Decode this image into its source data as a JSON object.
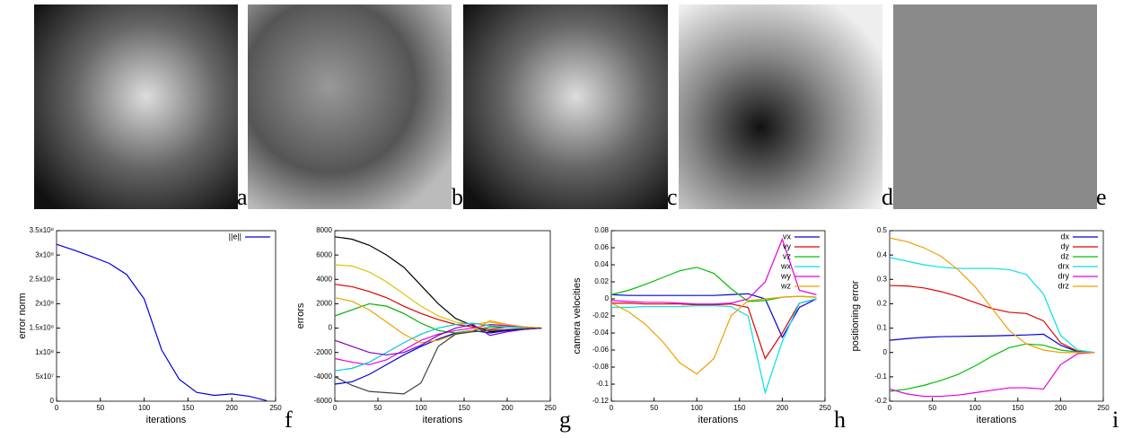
{
  "images": [
    {
      "label": "a"
    },
    {
      "label": "b"
    },
    {
      "label": "c"
    },
    {
      "label": "d"
    },
    {
      "label": "e"
    }
  ],
  "chart_data": [
    {
      "type": "line",
      "panel_label": "f",
      "xlabel": "iterations",
      "ylabel": "error norm",
      "x": [
        0,
        20,
        40,
        60,
        80,
        100,
        120,
        140,
        160,
        180,
        200,
        220,
        240
      ],
      "xlim": [
        0,
        250
      ],
      "xticks": [
        0,
        50,
        100,
        150,
        200,
        250
      ],
      "ylim": [
        0,
        350000000
      ],
      "yticks": [
        0,
        {
          "value": 50000000,
          "label": "5x10⁷"
        },
        {
          "value": 100000000,
          "label": "1x10⁸"
        },
        {
          "value": 150000000,
          "label": "1.5x10⁸"
        },
        {
          "value": 200000000,
          "label": "2x10⁸"
        },
        {
          "value": 250000000,
          "label": "2.5x10⁸"
        },
        {
          "value": 300000000,
          "label": "3x10⁸"
        },
        {
          "value": 350000000,
          "label": "3.5x10⁸"
        }
      ],
      "legend": "upper right",
      "series": [
        {
          "name": "||e||",
          "color": "#0000dd",
          "values": [
            322000000,
            310000000,
            297000000,
            283000000,
            260000000,
            210000000,
            105000000,
            45000000,
            18000000,
            12000000,
            15000000,
            10000000,
            1000000
          ]
        }
      ]
    },
    {
      "type": "line",
      "panel_label": "g",
      "xlabel": "iterations",
      "ylabel": "errors",
      "x": [
        0,
        20,
        40,
        60,
        80,
        100,
        120,
        140,
        160,
        180,
        200,
        220,
        240
      ],
      "xlim": [
        0,
        250
      ],
      "xticks": [
        0,
        50,
        100,
        150,
        200,
        250
      ],
      "ylim": [
        -6000,
        8000
      ],
      "yticks": [
        -6000,
        -4000,
        -2000,
        0,
        2000,
        4000,
        6000,
        8000
      ],
      "series": [
        {
          "color": "#000000",
          "values": [
            7500,
            7300,
            6800,
            6000,
            5000,
            3500,
            2000,
            800,
            200,
            -300,
            -200,
            -100,
            0
          ]
        },
        {
          "color": "#e0c000",
          "values": [
            5200,
            5100,
            4600,
            3800,
            2800,
            1800,
            1000,
            500,
            300,
            500,
            200,
            100,
            0
          ]
        },
        {
          "color": "#e00000",
          "values": [
            3600,
            3400,
            3000,
            2500,
            1800,
            1200,
            700,
            300,
            100,
            -100,
            100,
            50,
            0
          ]
        },
        {
          "color": "#0000e0",
          "values": [
            -4600,
            -4400,
            -3800,
            -3000,
            -2200,
            -1500,
            -900,
            -400,
            -200,
            -400,
            -200,
            -100,
            0
          ]
        },
        {
          "color": "#00b000",
          "values": [
            1000,
            1500,
            2000,
            1800,
            1200,
            400,
            -200,
            -400,
            -200,
            100,
            100,
            50,
            0
          ]
        },
        {
          "color": "#e000e0",
          "values": [
            -2500,
            -2800,
            -3000,
            -2600,
            -1800,
            -1000,
            -500,
            -200,
            0,
            300,
            200,
            100,
            0
          ]
        },
        {
          "color": "#00c8d8",
          "values": [
            -3500,
            -3300,
            -2800,
            -2000,
            -1200,
            -500,
            0,
            300,
            400,
            200,
            100,
            50,
            0
          ]
        },
        {
          "color": "#f0a000",
          "values": [
            2500,
            2200,
            1500,
            500,
            -500,
            -1200,
            -1000,
            -500,
            -200,
            600,
            300,
            100,
            0
          ]
        },
        {
          "color": "#8000c0",
          "values": [
            -1000,
            -1500,
            -2000,
            -2200,
            -2000,
            -1400,
            -600,
            0,
            300,
            -600,
            -300,
            -100,
            0
          ]
        },
        {
          "color": "#404040",
          "values": [
            -4000,
            -4700,
            -5200,
            -5300,
            -5400,
            -4500,
            -1500,
            -500,
            -300,
            -200,
            -100,
            -50,
            0
          ]
        }
      ]
    },
    {
      "type": "line",
      "panel_label": "h",
      "xlabel": "iterations",
      "ylabel": "camera velocities",
      "x": [
        0,
        20,
        40,
        60,
        80,
        100,
        120,
        140,
        160,
        180,
        200,
        220,
        240
      ],
      "xlim": [
        0,
        250
      ],
      "xticks": [
        0,
        50,
        100,
        150,
        200,
        250
      ],
      "ylim": [
        -0.12,
        0.08
      ],
      "yticks": [
        -0.12,
        -0.1,
        -0.08,
        -0.06,
        -0.04,
        -0.02,
        0,
        0.02,
        0.04,
        0.06,
        0.08
      ],
      "legend": "upper right",
      "series": [
        {
          "name": "vx",
          "color": "#0000dd",
          "values": [
            0.005,
            0.004,
            0.004,
            0.004,
            0.004,
            0.004,
            0.004,
            0.005,
            0.006,
            0.0,
            -0.045,
            -0.01,
            0.0
          ]
        },
        {
          "name": "vy",
          "color": "#e00000",
          "values": [
            -0.005,
            -0.005,
            -0.006,
            -0.006,
            -0.006,
            -0.007,
            -0.007,
            -0.006,
            -0.01,
            -0.07,
            -0.04,
            -0.005,
            0.0
          ]
        },
        {
          "name": "vz",
          "color": "#00c000",
          "values": [
            0.005,
            0.01,
            0.017,
            0.025,
            0.033,
            0.037,
            0.03,
            0.012,
            -0.003,
            -0.002,
            0.002,
            0.003,
            0.002
          ]
        },
        {
          "name": "wx",
          "color": "#00e0e8",
          "values": [
            -0.01,
            -0.01,
            -0.009,
            -0.009,
            -0.009,
            -0.008,
            -0.008,
            -0.009,
            -0.02,
            -0.11,
            -0.05,
            -0.005,
            0.0
          ]
        },
        {
          "name": "wy",
          "color": "#e000e0",
          "values": [
            -0.002,
            -0.003,
            -0.004,
            -0.004,
            -0.005,
            -0.006,
            -0.006,
            -0.005,
            0.0,
            0.02,
            0.07,
            0.01,
            0.005
          ]
        },
        {
          "name": "wz",
          "color": "#f0a000",
          "values": [
            -0.005,
            -0.015,
            -0.03,
            -0.05,
            -0.075,
            -0.088,
            -0.07,
            -0.02,
            -0.002,
            0.0,
            0.002,
            0.003,
            0.002
          ]
        }
      ]
    },
    {
      "type": "line",
      "panel_label": "i",
      "xlabel": "iterations",
      "ylabel": "positioning error",
      "x": [
        0,
        20,
        40,
        60,
        80,
        100,
        120,
        140,
        160,
        180,
        200,
        220,
        240
      ],
      "xlim": [
        0,
        250
      ],
      "xticks": [
        0,
        50,
        100,
        150,
        200,
        250
      ],
      "ylim": [
        -0.2,
        0.5
      ],
      "yticks": [
        -0.2,
        -0.1,
        0,
        0.1,
        0.2,
        0.3,
        0.4,
        0.5
      ],
      "legend": "upper right",
      "series": [
        {
          "name": "dx",
          "color": "#0000dd",
          "values": [
            0.05,
            0.057,
            0.062,
            0.065,
            0.066,
            0.067,
            0.068,
            0.07,
            0.072,
            0.075,
            0.03,
            0.003,
            0
          ]
        },
        {
          "name": "dy",
          "color": "#e00000",
          "values": [
            0.275,
            0.273,
            0.265,
            0.25,
            0.23,
            0.205,
            0.18,
            0.165,
            0.16,
            0.13,
            0.04,
            0.005,
            0
          ]
        },
        {
          "name": "dz",
          "color": "#00c000",
          "values": [
            -0.16,
            -0.15,
            -0.135,
            -0.115,
            -0.09,
            -0.055,
            -0.015,
            0.02,
            0.035,
            0.03,
            0.01,
            0.002,
            0
          ]
        },
        {
          "name": "drx",
          "color": "#00e0e8",
          "values": [
            0.39,
            0.375,
            0.36,
            0.35,
            0.345,
            0.345,
            0.345,
            0.34,
            0.32,
            0.24,
            0.07,
            0.01,
            0
          ]
        },
        {
          "name": "dry",
          "color": "#e000e0",
          "values": [
            -0.15,
            -0.17,
            -0.18,
            -0.18,
            -0.175,
            -0.165,
            -0.155,
            -0.145,
            -0.145,
            -0.15,
            -0.05,
            -0.005,
            0
          ]
        },
        {
          "name": "drz",
          "color": "#f0a000",
          "values": [
            0.47,
            0.455,
            0.43,
            0.395,
            0.34,
            0.27,
            0.18,
            0.09,
            0.035,
            0.01,
            0.0,
            0.0,
            0
          ]
        }
      ]
    }
  ]
}
